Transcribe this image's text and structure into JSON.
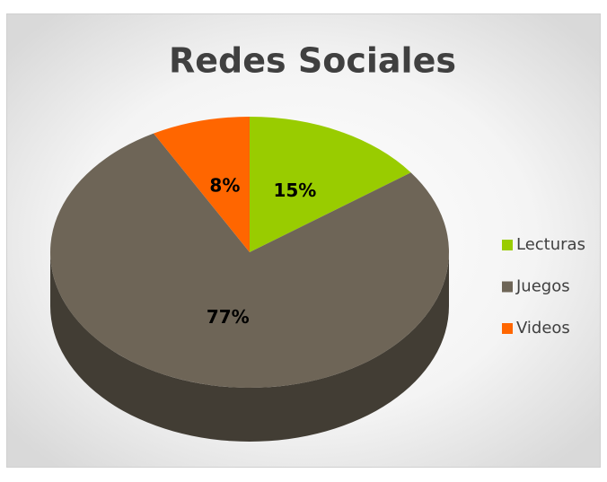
{
  "chart_data": {
    "type": "pie",
    "title": "Redes Sociales",
    "categories": [
      "Lecturas",
      "Juegos",
      "Videos"
    ],
    "values": [
      15,
      77,
      8
    ],
    "value_labels": [
      "15%",
      "77%",
      "8%"
    ],
    "colors": [
      "#99cc00",
      "#6e6557",
      "#ff6600"
    ],
    "legend": "right"
  }
}
